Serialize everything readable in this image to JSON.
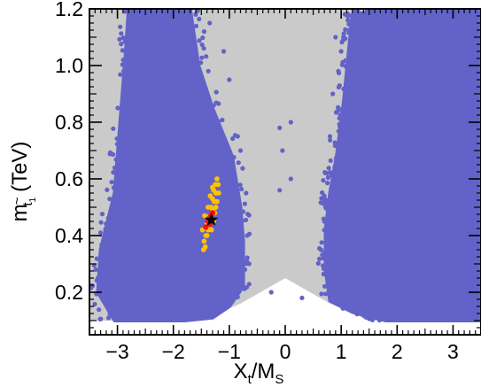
{
  "colors": {
    "allowed_region": "#cacaca",
    "blue_points": "#6262c8",
    "orange_points": "#ffc200",
    "red_points": "#ee1111",
    "best_point": "#000000",
    "background": "#ffffff"
  },
  "chart_data": {
    "type": "scatter",
    "title": "",
    "xlabel": {
      "main": "X",
      "sub1": "t",
      "slash": "/M",
      "sub2": "S"
    },
    "ylabel": {
      "main": "m",
      "sub_tilde": "~",
      "sub_t": "t",
      "sub_1": "1",
      "unit": "(TeV)"
    },
    "xlim": [
      -3.5,
      3.5
    ],
    "ylim": [
      0.05,
      1.2
    ],
    "x_ticks": [
      -3,
      -2,
      -1,
      0,
      1,
      2,
      3
    ],
    "x_tick_labels": [
      "−3",
      "−2",
      "−1",
      "0",
      "1",
      "2",
      "3"
    ],
    "y_ticks": [
      0.2,
      0.4,
      0.6,
      0.8,
      1.0,
      1.2
    ],
    "y_tick_labels": [
      "0.2",
      "0.4",
      "0.6",
      "0.8",
      "1.0",
      "1.2"
    ],
    "grid": false,
    "legend": "none",
    "series": [
      {
        "kind": "gray_region",
        "outline": [
          [
            -3.5,
            1.2
          ],
          [
            3.5,
            1.2
          ],
          [
            3.5,
            0.1
          ],
          [
            2.5,
            0.1
          ],
          [
            1.5,
            0.1
          ],
          [
            0.8,
            0.16
          ],
          [
            0.0,
            0.25
          ],
          [
            -0.8,
            0.16
          ],
          [
            -1.5,
            0.1
          ],
          [
            -2.5,
            0.1
          ],
          [
            -3.5,
            0.1
          ]
        ]
      },
      {
        "kind": "blue_left",
        "outline": [
          [
            -2.8,
            1.2
          ],
          [
            -2.1,
            1.2
          ],
          [
            -1.7,
            1.2
          ],
          [
            -1.55,
            1.0
          ],
          [
            -1.3,
            0.85
          ],
          [
            -0.95,
            0.68
          ],
          [
            -0.8,
            0.5
          ],
          [
            -0.75,
            0.38
          ],
          [
            -0.75,
            0.22
          ],
          [
            -1.0,
            0.15
          ],
          [
            -1.3,
            0.11
          ],
          [
            -1.8,
            0.1
          ],
          [
            -2.5,
            0.1
          ],
          [
            -3.05,
            0.1
          ],
          [
            -3.35,
            0.2
          ],
          [
            -3.3,
            0.35
          ],
          [
            -3.05,
            0.55
          ],
          [
            -2.95,
            0.8
          ],
          [
            -2.85,
            1.05
          ]
        ]
      },
      {
        "kind": "blue_right",
        "outline": [
          [
            1.2,
            1.18
          ],
          [
            1.9,
            1.2
          ],
          [
            3.5,
            1.2
          ],
          [
            3.5,
            0.1
          ],
          [
            2.8,
            0.1
          ],
          [
            1.8,
            0.1
          ],
          [
            1.2,
            0.13
          ],
          [
            0.8,
            0.17
          ],
          [
            0.72,
            0.28
          ],
          [
            0.72,
            0.42
          ],
          [
            0.8,
            0.55
          ],
          [
            0.92,
            0.68
          ],
          [
            1.05,
            0.88
          ],
          [
            1.12,
            1.02
          ]
        ]
      },
      {
        "kind": "blue_scatter",
        "points": [
          [
            0.1,
            0.8
          ],
          [
            -0.1,
            0.78
          ],
          [
            -0.05,
            0.7
          ],
          [
            0.1,
            0.6
          ],
          [
            -0.1,
            0.56
          ],
          [
            0.9,
            1.1
          ],
          [
            1.0,
            1.05
          ],
          [
            0.95,
            0.98
          ],
          [
            0.85,
            0.9
          ],
          [
            0.72,
            0.5
          ],
          [
            0.7,
            0.45
          ],
          [
            0.68,
            0.32
          ],
          [
            0.75,
            0.62
          ],
          [
            0.8,
            0.75
          ],
          [
            1.12,
            1.16
          ],
          [
            1.2,
            1.12
          ],
          [
            -0.85,
            0.75
          ],
          [
            -0.8,
            0.7
          ],
          [
            -0.7,
            0.55
          ],
          [
            -0.68,
            0.4
          ],
          [
            -1.0,
            0.95
          ],
          [
            -1.1,
            1.05
          ],
          [
            -1.45,
            1.12
          ],
          [
            -1.35,
            1.15
          ],
          [
            -0.72,
            0.28
          ],
          [
            0.3,
            0.18
          ],
          [
            -0.25,
            0.2
          ],
          [
            1.4,
            0.55
          ],
          [
            1.3,
            0.5
          ],
          [
            1.6,
            0.8
          ],
          [
            -3.3,
            0.3
          ],
          [
            -3.35,
            0.25
          ]
        ]
      },
      {
        "kind": "orange",
        "points": [
          [
            -1.45,
            0.38
          ],
          [
            -1.42,
            0.4
          ],
          [
            -1.4,
            0.44
          ],
          [
            -1.38,
            0.42
          ],
          [
            -1.35,
            0.47
          ],
          [
            -1.33,
            0.5
          ],
          [
            -1.3,
            0.53
          ],
          [
            -1.28,
            0.56
          ],
          [
            -1.25,
            0.58
          ],
          [
            -1.22,
            0.6
          ],
          [
            -1.2,
            0.58
          ],
          [
            -1.24,
            0.55
          ],
          [
            -1.27,
            0.52
          ],
          [
            -1.3,
            0.49
          ],
          [
            -1.32,
            0.45
          ],
          [
            -1.36,
            0.43
          ],
          [
            -1.4,
            0.4
          ],
          [
            -1.43,
            0.36
          ],
          [
            -1.46,
            0.35
          ],
          [
            -1.44,
            0.47
          ],
          [
            -1.32,
            0.42
          ],
          [
            -1.26,
            0.48
          ],
          [
            -1.22,
            0.52
          ],
          [
            -1.3,
            0.57
          ],
          [
            -1.34,
            0.54
          ],
          [
            -1.38,
            0.5
          ],
          [
            -1.48,
            0.42
          ],
          [
            -1.28,
            0.45
          ],
          [
            -1.24,
            0.5
          ],
          [
            -1.19,
            0.55
          ]
        ]
      },
      {
        "kind": "red",
        "points": [
          [
            -1.42,
            0.43
          ],
          [
            -1.38,
            0.45
          ],
          [
            -1.35,
            0.44
          ],
          [
            -1.33,
            0.47
          ],
          [
            -1.3,
            0.48
          ],
          [
            -1.36,
            0.46
          ]
        ]
      },
      {
        "kind": "best_star",
        "points": [
          [
            -1.32,
            0.455
          ]
        ]
      }
    ]
  }
}
